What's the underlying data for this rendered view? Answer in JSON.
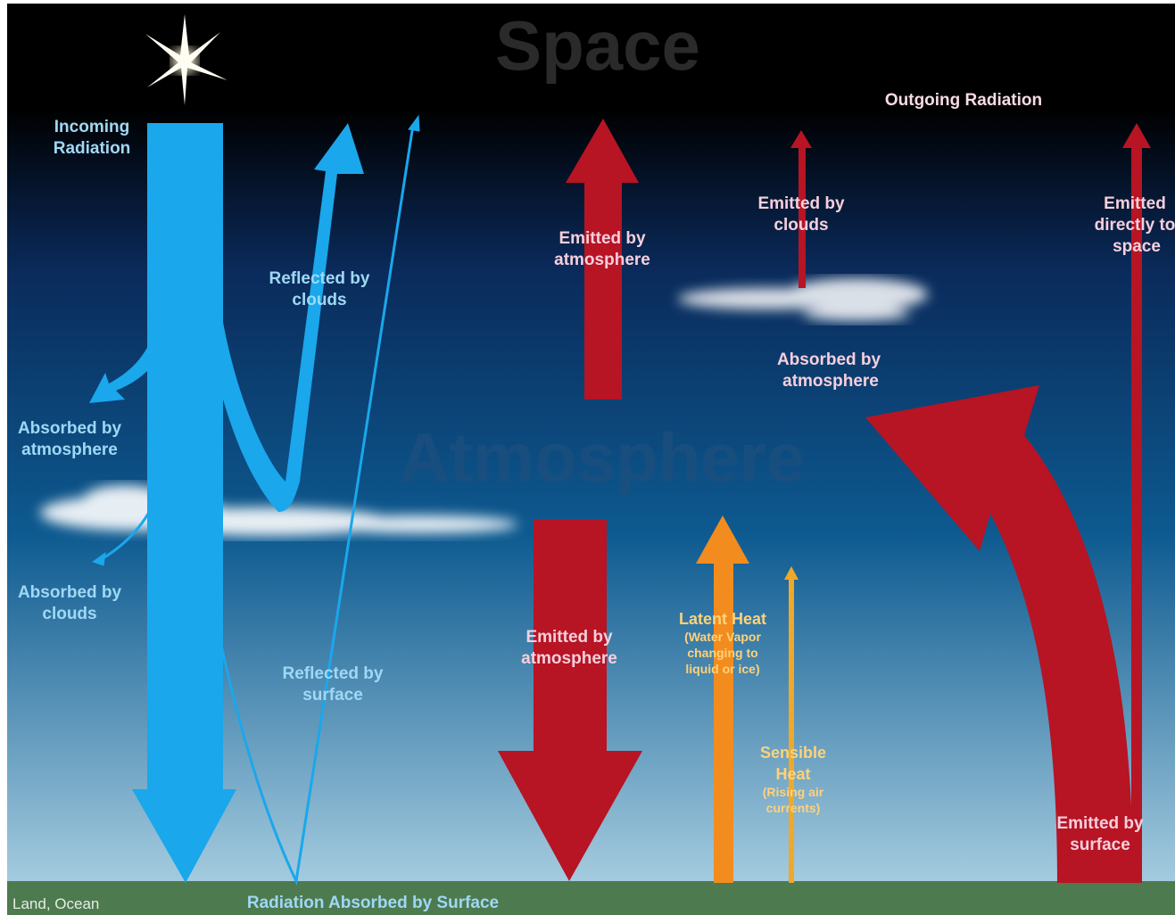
{
  "watermarks": {
    "space": "Space",
    "atmosphere": "Atmosphere"
  },
  "outgoing": "Outgoing Radiation",
  "labels": [
    {
      "lines": [
        "Incoming",
        "Radiation"
      ]
    },
    {
      "lines": [
        "Reflected by",
        "clouds"
      ]
    },
    {
      "lines": [
        "Absorbed by",
        "atmosphere"
      ]
    },
    {
      "lines": [
        "Absorbed by",
        "clouds"
      ]
    },
    {
      "lines": [
        "Reflected by",
        "surface"
      ]
    },
    {
      "lines": [
        "Emitted by",
        "atmosphere"
      ]
    },
    {
      "lines": [
        "Emitted by",
        "clouds"
      ]
    },
    {
      "lines": [
        "Emitted",
        "directly to",
        "space"
      ]
    },
    {
      "lines": [
        "Absorbed by",
        "atmosphere"
      ]
    },
    {
      "lines": [
        "Emitted by",
        "atmosphere"
      ]
    },
    {
      "lines": [
        "Emitted by",
        "surface"
      ]
    }
  ],
  "latent_heat": {
    "title": "Latent Heat",
    "note": [
      "(Water Vapor",
      "changing to",
      "liquid or ice)"
    ]
  },
  "sensible_heat": {
    "title": [
      "Sensible",
      "Heat"
    ],
    "note": [
      "(Rising air",
      "currents)"
    ]
  },
  "ground": {
    "label": "Land, Ocean",
    "caption": "Radiation Absorbed by Surface"
  }
}
